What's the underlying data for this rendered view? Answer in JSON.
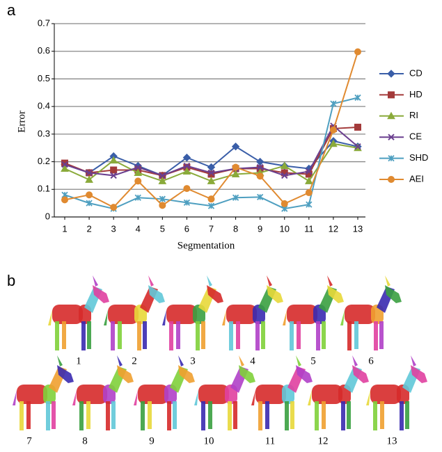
{
  "chart_data": {
    "type": "line",
    "panel_label": "a",
    "x_label": "Segmentation",
    "y_label": "Error",
    "categories": [
      "1",
      "2",
      "3",
      "4",
      "5",
      "6",
      "7",
      "8",
      "9",
      "10",
      "11",
      "12",
      "13"
    ],
    "ylim": [
      0,
      0.7
    ],
    "yticks": [
      0,
      0.1,
      0.2,
      0.3,
      0.4,
      0.5,
      0.6,
      0.7
    ],
    "grid": true,
    "legend": "right",
    "series": [
      {
        "name": "CD",
        "color": "#3a5ea8",
        "marker": "diamond",
        "values": [
          0.19,
          0.16,
          0.22,
          0.185,
          0.15,
          0.215,
          0.18,
          0.255,
          0.2,
          0.185,
          0.175,
          0.275,
          0.255
        ]
      },
      {
        "name": "HD",
        "color": "#a33a3a",
        "marker": "square",
        "values": [
          0.195,
          0.16,
          0.17,
          0.17,
          0.15,
          0.18,
          0.155,
          0.175,
          0.175,
          0.16,
          0.155,
          0.32,
          0.325
        ]
      },
      {
        "name": "RI",
        "color": "#8aaa3a",
        "marker": "triangle",
        "values": [
          0.175,
          0.135,
          0.205,
          0.16,
          0.13,
          0.165,
          0.13,
          0.155,
          0.16,
          0.185,
          0.13,
          0.265,
          0.25
        ]
      },
      {
        "name": "CE",
        "color": "#6a3f8f",
        "marker": "x",
        "values": [
          0.19,
          0.16,
          0.15,
          0.18,
          0.15,
          0.185,
          0.16,
          0.175,
          0.18,
          0.15,
          0.165,
          0.33,
          0.255
        ]
      },
      {
        "name": "SHD",
        "color": "#4e9fc0",
        "marker": "star",
        "values": [
          0.08,
          0.05,
          0.03,
          0.07,
          0.065,
          0.052,
          0.04,
          0.07,
          0.072,
          0.03,
          0.045,
          0.41,
          0.432
        ]
      },
      {
        "name": "AEI",
        "color": "#e08a30",
        "marker": "circle",
        "values": [
          0.062,
          0.08,
          0.035,
          0.13,
          0.042,
          0.103,
          0.065,
          0.18,
          0.148,
          0.048,
          0.088,
          0.315,
          0.598
        ]
      }
    ]
  },
  "panel_b": {
    "label": "b",
    "captions": [
      "1",
      "2",
      "3",
      "4",
      "5",
      "6",
      "7",
      "8",
      "9",
      "10",
      "11",
      "12",
      "13"
    ]
  }
}
